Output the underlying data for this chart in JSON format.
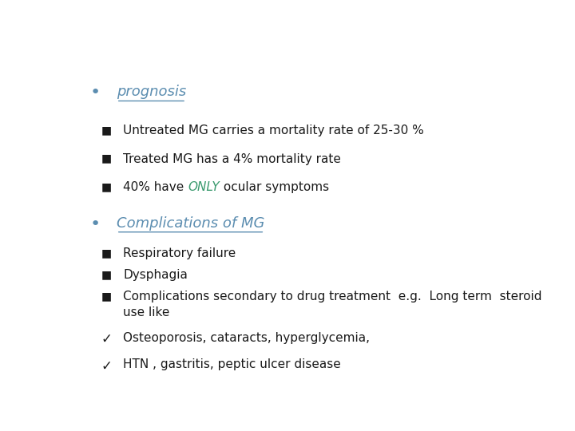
{
  "background_color": "#ffffff",
  "heading_color": "#5b8db0",
  "text_color": "#1a1a1a",
  "only_color": "#3a9a6e",
  "bullet1_heading": "prognosis",
  "bullet2_heading": "Complications of MG",
  "sub_items": [
    "Untreated MG carries a mortality rate of 25-30 %",
    "Treated MG has a 4% mortality rate",
    "40% have ONLY ocular symptoms"
  ],
  "sub_items2": [
    "Respiratory failure",
    "Dysphagia",
    "Complications secondary to drug treatment  e.g.  Long term  steroid\nuse like"
  ],
  "check_items": [
    "Osteoporosis, cataracts, hyperglycemia,",
    "HTN , gastritis, peptic ulcer disease"
  ],
  "font_size_heading": 13,
  "font_size_text": 11,
  "heading_underline_color": "#5b8db0",
  "square_bullet": "■"
}
